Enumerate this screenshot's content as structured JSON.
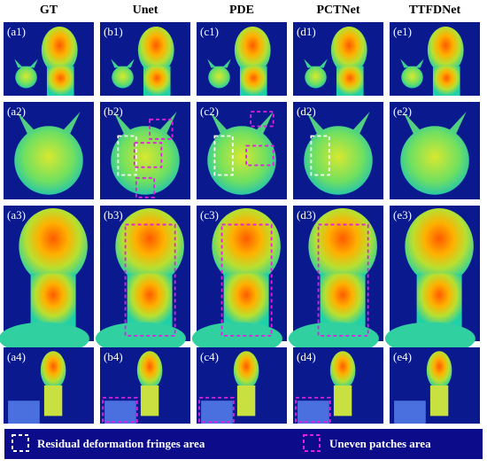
{
  "header": {
    "columns": [
      "GT",
      "Unet",
      "PDE",
      "PCTNet",
      "TTFDNet"
    ]
  },
  "panels": [
    [
      "(a1)",
      "(b1)",
      "(c1)",
      "(d1)",
      "(e1)"
    ],
    [
      "(a2)",
      "(b2)",
      "(c2)",
      "(d2)",
      "(e2)"
    ],
    [
      "(a3)",
      "(b3)",
      "(c3)",
      "(d3)",
      "(e3)"
    ],
    [
      "(a4)",
      "(b4)",
      "(c4)",
      "(d4)",
      "(e4)"
    ]
  ],
  "legend": [
    "Residual deformation fringes area",
    "Uneven patches area"
  ]
}
